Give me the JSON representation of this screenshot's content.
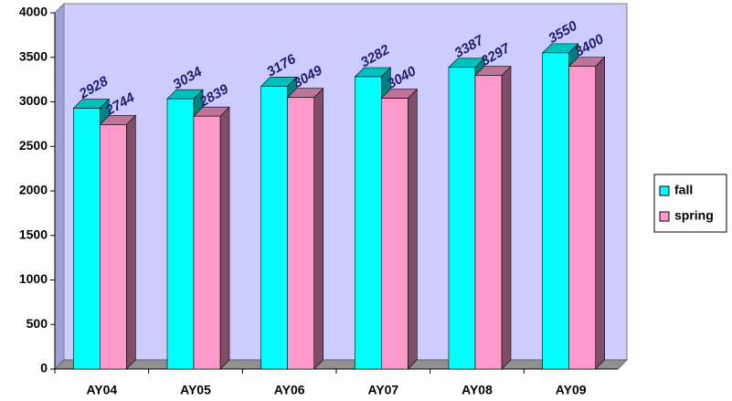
{
  "chart_data": {
    "type": "bar3d",
    "categories": [
      "AY04",
      "AY05",
      "AY06",
      "AY07",
      "AY08",
      "AY09"
    ],
    "series": [
      {
        "name": "fall",
        "color": "#00ffff",
        "values": [
          2928,
          3034,
          3176,
          3282,
          3387,
          3550
        ]
      },
      {
        "name": "spring",
        "color": "#ff99cc",
        "values": [
          2744,
          2839,
          3049,
          3040,
          3297,
          3400
        ]
      }
    ],
    "ylim": [
      0,
      4000
    ],
    "yticks": [
      0,
      500,
      1000,
      1500,
      2000,
      2500,
      3000,
      3500,
      4000
    ],
    "grid": false,
    "legend": "right"
  }
}
